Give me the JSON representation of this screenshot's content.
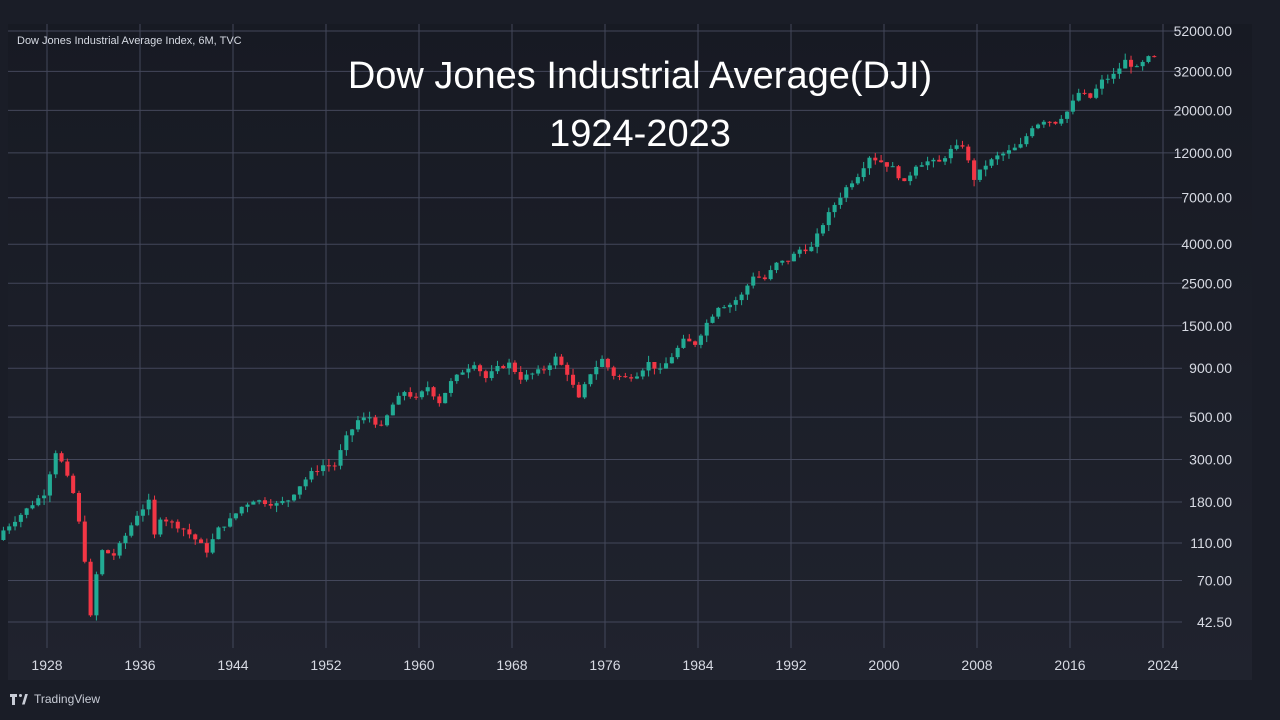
{
  "header": {
    "symbol_label": "Dow Jones Industrial Average Index, 6M, TVC",
    "title_line1": "Dow Jones Industrial Average(DJI)",
    "title_line2": "1924-2023"
  },
  "footer": {
    "brand": "TradingView"
  },
  "colors": {
    "up": "#22ab94",
    "down": "#f23645",
    "background": "#1a1d27",
    "grid": "#43475a",
    "text": "#d7dae3"
  },
  "chart_data": {
    "type": "candlestick",
    "interval": "6M",
    "scale": "log",
    "grid": true,
    "xlim": [
      1924,
      2025
    ],
    "ylim": [
      38,
      57000
    ],
    "y_ticks": [
      52000,
      32000,
      20000,
      12000,
      7000,
      4000,
      2500,
      1500,
      900,
      500,
      300,
      180,
      110,
      70,
      42.5
    ],
    "y_tick_labels": [
      "52000.00",
      "32000.00",
      "20000.00",
      "12000.00",
      "7000.00",
      "4000.00",
      "2500.00",
      "1500.00",
      "900.00",
      "500.00",
      "300.00",
      "180.00",
      "110.00",
      "70.00",
      "42.50"
    ],
    "x_ticks": [
      1928,
      1936,
      1944,
      1952,
      1960,
      1968,
      1976,
      1984,
      1992,
      2000,
      2008,
      2016,
      2024
    ],
    "x_tick_labels": [
      "1928",
      "1936",
      "1944",
      "1952",
      "1960",
      "1968",
      "1976",
      "1984",
      "1992",
      "2000",
      "2008",
      "2016",
      "2024"
    ],
    "close_points": [
      [
        1924,
        120
      ],
      [
        1926,
        155
      ],
      [
        1928,
        200
      ],
      [
        1929,
        330
      ],
      [
        1929.5,
        290
      ],
      [
        1930,
        240
      ],
      [
        1930.5,
        200
      ],
      [
        1931,
        140
      ],
      [
        1931.5,
        90
      ],
      [
        1932,
        45
      ],
      [
        1932.5,
        75
      ],
      [
        1933,
        100
      ],
      [
        1934,
        95
      ],
      [
        1935,
        120
      ],
      [
        1936,
        155
      ],
      [
        1937,
        180
      ],
      [
        1937.5,
        120
      ],
      [
        1938,
        150
      ],
      [
        1939,
        140
      ],
      [
        1940,
        130
      ],
      [
        1941,
        115
      ],
      [
        1942,
        100
      ],
      [
        1943,
        130
      ],
      [
        1944,
        145
      ],
      [
        1945,
        170
      ],
      [
        1946,
        185
      ],
      [
        1947,
        180
      ],
      [
        1948,
        175
      ],
      [
        1949,
        185
      ],
      [
        1950,
        220
      ],
      [
        1951,
        255
      ],
      [
        1952,
        280
      ],
      [
        1953,
        280
      ],
      [
        1954,
        390
      ],
      [
        1955,
        480
      ],
      [
        1956,
        500
      ],
      [
        1957,
        440
      ],
      [
        1958,
        580
      ],
      [
        1959,
        680
      ],
      [
        1960,
        620
      ],
      [
        1961,
        720
      ],
      [
        1962,
        600
      ],
      [
        1963,
        760
      ],
      [
        1964,
        870
      ],
      [
        1965,
        960
      ],
      [
        1966,
        800
      ],
      [
        1967,
        900
      ],
      [
        1968,
        950
      ],
      [
        1969,
        800
      ],
      [
        1970,
        840
      ],
      [
        1971,
        890
      ],
      [
        1972,
        1020
      ],
      [
        1973,
        850
      ],
      [
        1974,
        620
      ],
      [
        1975,
        850
      ],
      [
        1976,
        1000
      ],
      [
        1977,
        830
      ],
      [
        1978,
        800
      ],
      [
        1979,
        840
      ],
      [
        1980,
        960
      ],
      [
        1981,
        870
      ],
      [
        1982,
        1040
      ],
      [
        1983,
        1250
      ],
      [
        1984,
        1210
      ],
      [
        1985,
        1550
      ],
      [
        1986,
        1900
      ],
      [
        1987,
        1940
      ],
      [
        1988,
        2160
      ],
      [
        1989,
        2750
      ],
      [
        1990,
        2630
      ],
      [
        1991,
        3160
      ],
      [
        1992,
        3300
      ],
      [
        1993,
        3750
      ],
      [
        1994,
        3830
      ],
      [
        1995,
        5120
      ],
      [
        1996,
        6450
      ],
      [
        1997,
        7900
      ],
      [
        1998,
        9200
      ],
      [
        1999,
        11500
      ],
      [
        2000,
        10800
      ],
      [
        2001,
        10000
      ],
      [
        2002,
        8300
      ],
      [
        2003,
        10400
      ],
      [
        2004,
        10800
      ],
      [
        2005,
        10700
      ],
      [
        2006,
        12400
      ],
      [
        2007,
        13200
      ],
      [
        2008,
        8800
      ],
      [
        2009,
        10400
      ],
      [
        2010,
        11500
      ],
      [
        2011,
        12200
      ],
      [
        2012,
        13100
      ],
      [
        2013,
        16500
      ],
      [
        2014,
        17800
      ],
      [
        2015,
        17400
      ],
      [
        2016,
        19700
      ],
      [
        2017,
        24700
      ],
      [
        2018,
        23300
      ],
      [
        2019,
        28500
      ],
      [
        2020,
        30600
      ],
      [
        2021,
        36300
      ],
      [
        2022,
        33100
      ],
      [
        2023,
        37500
      ]
    ]
  }
}
